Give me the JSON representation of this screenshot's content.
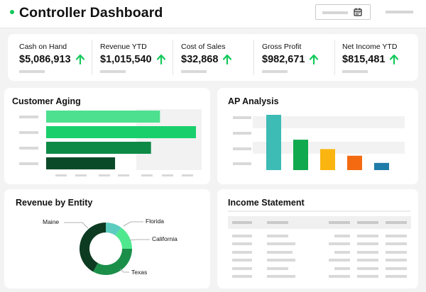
{
  "header": {
    "title": "Controller Dashboard",
    "date_picker": {
      "icon": "calendar-icon"
    }
  },
  "kpis": [
    {
      "label": "Cash on Hand",
      "value": "$5,086,913",
      "trend": "up"
    },
    {
      "label": "Revenue YTD",
      "value": "$1,015,540",
      "trend": "up"
    },
    {
      "label": "Cost of Sales",
      "value": "$32,868",
      "trend": "up"
    },
    {
      "label": "Gross Profit",
      "value": "$982,671",
      "trend": "up"
    },
    {
      "label": "Net Income YTD",
      "value": "$815,481",
      "trend": "up"
    }
  ],
  "colors": {
    "accent": "#14c95a",
    "trend_up": "#14c95a",
    "placeholder": "#d9d9d9"
  },
  "panels": {
    "aging_title": "Customer Aging",
    "ap_title": "AP Analysis",
    "revenue_title": "Revenue by Entity",
    "income_title": "Income Statement"
  },
  "chart_data": [
    {
      "id": "customer-aging",
      "type": "bar",
      "orientation": "horizontal",
      "title": "Customer Aging",
      "categories": [
        "",
        "",
        "",
        ""
      ],
      "values": [
        76,
        100,
        70,
        46
      ],
      "colors": [
        "#4ce08f",
        "#19cf6c",
        "#0e8a47",
        "#0b4a29"
      ],
      "xlim": [
        0,
        100
      ],
      "grid": true
    },
    {
      "id": "ap-analysis",
      "type": "bar",
      "orientation": "vertical",
      "title": "AP Analysis",
      "categories": [
        "",
        "",
        "",
        "",
        ""
      ],
      "values": [
        100,
        55,
        38,
        26,
        13
      ],
      "colors": [
        "#3dbbb5",
        "#11a94e",
        "#fbb510",
        "#f36a10",
        "#1f7ca8"
      ],
      "ylim": [
        0,
        100
      ],
      "grid": true
    },
    {
      "id": "revenue-by-entity",
      "type": "pie",
      "donut": true,
      "title": "Revenue by Entity",
      "labels": [
        "Florida",
        "California",
        "Texas",
        "Maine"
      ],
      "values": [
        10,
        15,
        33,
        42
      ],
      "colors": [
        "#5cccc0",
        "#4fe88f",
        "#1b8f4a",
        "#0d3b22"
      ]
    }
  ]
}
